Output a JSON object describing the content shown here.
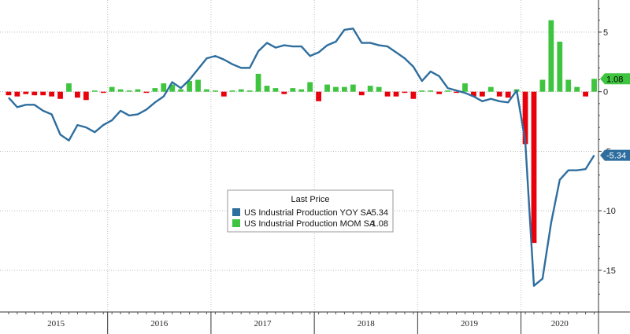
{
  "chart_data": {
    "type": "bar+line",
    "title": "",
    "xlabel": "",
    "ylabel": "",
    "y_ticks": [
      "5",
      "0",
      "-5",
      "-10",
      "-15"
    ],
    "y_tick_values": [
      5,
      0,
      -5,
      -10,
      -15
    ],
    "ylim": [
      -18.5,
      7.7
    ],
    "x_start": "2015-01",
    "years": [
      "2015",
      "2016",
      "2017",
      "2018",
      "2019",
      "2020"
    ],
    "grid": true,
    "legend": {
      "title": "Last Price",
      "placement": "center",
      "entries": [
        {
          "label": "US Industrial Production YOY SA",
          "value": "-5.34",
          "color": "#2e6e9e"
        },
        {
          "label": "US Industrial Production MOM SA",
          "value": "1.08",
          "color": "#3ec43e"
        }
      ]
    },
    "badges": [
      {
        "value": "1.08",
        "y": 1.08,
        "color": "#3ec43e"
      },
      {
        "value": "-5.34",
        "y": -5.34,
        "color": "#2e6e9e"
      }
    ],
    "series": [
      {
        "type": "line",
        "color": "#2e6e9e",
        "values": [
          -0.5,
          -1.3,
          -1.1,
          -1.1,
          -1.6,
          -1.9,
          -3.6,
          -4.1,
          -2.8,
          -3.0,
          -3.4,
          -2.8,
          -2.4,
          -1.6,
          -2.0,
          -1.9,
          -1.5,
          -0.9,
          -0.4,
          0.8,
          0.3,
          1.0,
          1.9,
          2.8,
          3.0,
          2.7,
          2.3,
          2.0,
          2.0,
          3.4,
          4.1,
          3.7,
          3.9,
          3.8,
          3.8,
          3.0,
          3.3,
          3.9,
          4.2,
          5.2,
          5.3,
          4.1,
          4.1,
          3.9,
          3.8,
          3.3,
          2.8,
          2.1,
          0.9,
          1.7,
          1.3,
          0.3,
          0.1,
          -0.1,
          -0.4,
          -0.8,
          -0.6,
          -0.8,
          -0.9,
          0.1,
          -4.2,
          -16.3,
          -15.7,
          -11.0,
          -7.4,
          -6.6,
          -6.6,
          -6.5,
          -5.34
        ]
      },
      {
        "type": "bar",
        "color_positive": "#3ec43e",
        "color_negative": "#e8000b",
        "values": [
          -0.3,
          -0.4,
          -0.2,
          -0.3,
          -0.3,
          -0.4,
          -0.6,
          0.7,
          -0.5,
          -0.7,
          0.1,
          -0.1,
          0.4,
          0.2,
          0.1,
          0.2,
          -0.1,
          0.3,
          0.7,
          0.6,
          0.2,
          0.9,
          1.0,
          0.2,
          0.1,
          -0.4,
          0.1,
          0.2,
          0.1,
          1.5,
          0.5,
          0.3,
          -0.2,
          0.3,
          0.2,
          0.8,
          -0.8,
          0.6,
          0.4,
          0.4,
          0.6,
          -0.3,
          0.5,
          0.4,
          -0.4,
          -0.4,
          -0.1,
          -0.6,
          0.1,
          0.1,
          -0.2,
          0.1,
          -0.1,
          0.7,
          -0.4,
          -0.4,
          0.4,
          -0.4,
          -0.5,
          0.2,
          -4.4,
          -12.7,
          1.0,
          6.0,
          4.2,
          1.0,
          0.4,
          -0.4,
          1.08
        ]
      }
    ]
  }
}
